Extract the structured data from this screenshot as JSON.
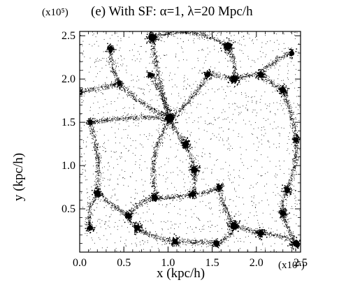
{
  "chart_data": {
    "type": "scatter",
    "title": "(e) With SF: α=1, λ=20 Mpc/h",
    "xlabel": "x (kpc/h)",
    "ylabel": "y (kpc/h)",
    "x_exponent_label": "(x10⁵)",
    "y_exponent_label": "(x10⁵)",
    "xlim": [
      0.0,
      2.5
    ],
    "ylim": [
      0.0,
      2.55
    ],
    "x_tick_labels": [
      "0.0",
      "0.5",
      "1.0",
      "1.5",
      "2.0",
      "2.5"
    ],
    "x_ticks": [
      0.0,
      0.5,
      1.0,
      1.5,
      2.0,
      2.5
    ],
    "y_tick_labels": [
      "0.5",
      "1.0",
      "1.5",
      "2.0",
      "2.5"
    ],
    "y_ticks": [
      0.5,
      1.0,
      1.5,
      2.0,
      2.5
    ],
    "grid": false,
    "legend": "none",
    "point_color": "#000000",
    "clusters": [
      {
        "x": 1.02,
        "y": 1.55,
        "size": 1.0
      },
      {
        "x": 0.82,
        "y": 2.48,
        "size": 0.85
      },
      {
        "x": 1.68,
        "y": 2.38,
        "size": 0.8
      },
      {
        "x": 1.75,
        "y": 2.0,
        "size": 0.7
      },
      {
        "x": 2.3,
        "y": 1.87,
        "size": 0.6
      },
      {
        "x": 2.05,
        "y": 2.05,
        "size": 0.5
      },
      {
        "x": 1.45,
        "y": 2.05,
        "size": 0.45
      },
      {
        "x": 0.35,
        "y": 2.35,
        "size": 0.45
      },
      {
        "x": 1.2,
        "y": 1.25,
        "size": 0.6
      },
      {
        "x": 1.3,
        "y": 0.95,
        "size": 0.6
      },
      {
        "x": 1.28,
        "y": 0.67,
        "size": 0.5
      },
      {
        "x": 0.85,
        "y": 0.63,
        "size": 0.55
      },
      {
        "x": 0.2,
        "y": 0.68,
        "size": 0.6
      },
      {
        "x": 0.55,
        "y": 0.42,
        "size": 0.5
      },
      {
        "x": 0.65,
        "y": 0.28,
        "size": 0.55
      },
      {
        "x": 0.12,
        "y": 0.28,
        "size": 0.45
      },
      {
        "x": 1.08,
        "y": 0.12,
        "size": 0.5
      },
      {
        "x": 1.55,
        "y": 0.1,
        "size": 0.5
      },
      {
        "x": 1.75,
        "y": 0.3,
        "size": 0.8
      },
      {
        "x": 2.05,
        "y": 0.22,
        "size": 0.55
      },
      {
        "x": 2.45,
        "y": 0.1,
        "size": 0.7
      },
      {
        "x": 2.3,
        "y": 0.45,
        "size": 0.55
      },
      {
        "x": 2.35,
        "y": 0.72,
        "size": 0.5
      },
      {
        "x": 2.45,
        "y": 1.3,
        "size": 0.4
      },
      {
        "x": 0.45,
        "y": 1.95,
        "size": 0.4
      },
      {
        "x": 0.0,
        "y": 1.85,
        "size": 0.4
      },
      {
        "x": 0.8,
        "y": 2.05,
        "size": 0.35
      },
      {
        "x": 2.4,
        "y": 2.3,
        "size": 0.35
      },
      {
        "x": 1.58,
        "y": 0.75,
        "size": 0.4
      },
      {
        "x": 0.12,
        "y": 1.5,
        "size": 0.3
      }
    ],
    "filaments": [
      [
        [
          1.02,
          1.55
        ],
        [
          0.82,
          2.48
        ]
      ],
      [
        [
          1.02,
          1.55
        ],
        [
          1.45,
          2.05
        ]
      ],
      [
        [
          1.45,
          2.05
        ],
        [
          1.75,
          2.0
        ]
      ],
      [
        [
          1.75,
          2.0
        ],
        [
          2.05,
          2.05
        ]
      ],
      [
        [
          2.05,
          2.05
        ],
        [
          2.3,
          1.87
        ]
      ],
      [
        [
          1.68,
          2.38
        ],
        [
          1.75,
          2.0
        ]
      ],
      [
        [
          0.82,
          2.48
        ],
        [
          1.68,
          2.38
        ]
      ],
      [
        [
          1.02,
          1.55
        ],
        [
          1.2,
          1.25
        ]
      ],
      [
        [
          1.2,
          1.25
        ],
        [
          1.3,
          0.95
        ]
      ],
      [
        [
          1.3,
          0.95
        ],
        [
          1.28,
          0.67
        ]
      ],
      [
        [
          1.28,
          0.67
        ],
        [
          0.85,
          0.63
        ]
      ],
      [
        [
          0.85,
          0.63
        ],
        [
          0.55,
          0.42
        ]
      ],
      [
        [
          0.55,
          0.42
        ],
        [
          0.2,
          0.68
        ]
      ],
      [
        [
          0.55,
          0.42
        ],
        [
          0.65,
          0.28
        ]
      ],
      [
        [
          0.65,
          0.28
        ],
        [
          1.08,
          0.12
        ]
      ],
      [
        [
          0.2,
          0.68
        ],
        [
          0.12,
          0.28
        ]
      ],
      [
        [
          1.08,
          0.12
        ],
        [
          1.55,
          0.1
        ]
      ],
      [
        [
          1.55,
          0.1
        ],
        [
          1.75,
          0.3
        ]
      ],
      [
        [
          1.75,
          0.3
        ],
        [
          2.05,
          0.22
        ]
      ],
      [
        [
          2.05,
          0.22
        ],
        [
          2.45,
          0.1
        ]
      ],
      [
        [
          2.3,
          0.45
        ],
        [
          2.45,
          0.1
        ]
      ],
      [
        [
          2.3,
          0.45
        ],
        [
          2.35,
          0.72
        ]
      ],
      [
        [
          1.75,
          0.3
        ],
        [
          1.58,
          0.75
        ]
      ],
      [
        [
          1.58,
          0.75
        ],
        [
          1.28,
          0.67
        ]
      ],
      [
        [
          1.02,
          1.55
        ],
        [
          0.45,
          1.95
        ]
      ],
      [
        [
          0.45,
          1.95
        ],
        [
          0.0,
          1.85
        ]
      ],
      [
        [
          0.45,
          1.95
        ],
        [
          0.35,
          2.35
        ]
      ],
      [
        [
          1.02,
          1.55
        ],
        [
          0.12,
          1.5
        ]
      ],
      [
        [
          2.3,
          1.87
        ],
        [
          2.45,
          1.3
        ]
      ],
      [
        [
          2.45,
          1.3
        ],
        [
          2.35,
          0.72
        ]
      ],
      [
        [
          1.02,
          1.55
        ],
        [
          0.85,
          0.63
        ]
      ],
      [
        [
          0.8,
          2.05
        ],
        [
          1.02,
          1.55
        ]
      ],
      [
        [
          2.05,
          2.05
        ],
        [
          2.4,
          2.3
        ]
      ],
      [
        [
          0.2,
          0.68
        ],
        [
          0.12,
          1.5
        ]
      ]
    ]
  }
}
